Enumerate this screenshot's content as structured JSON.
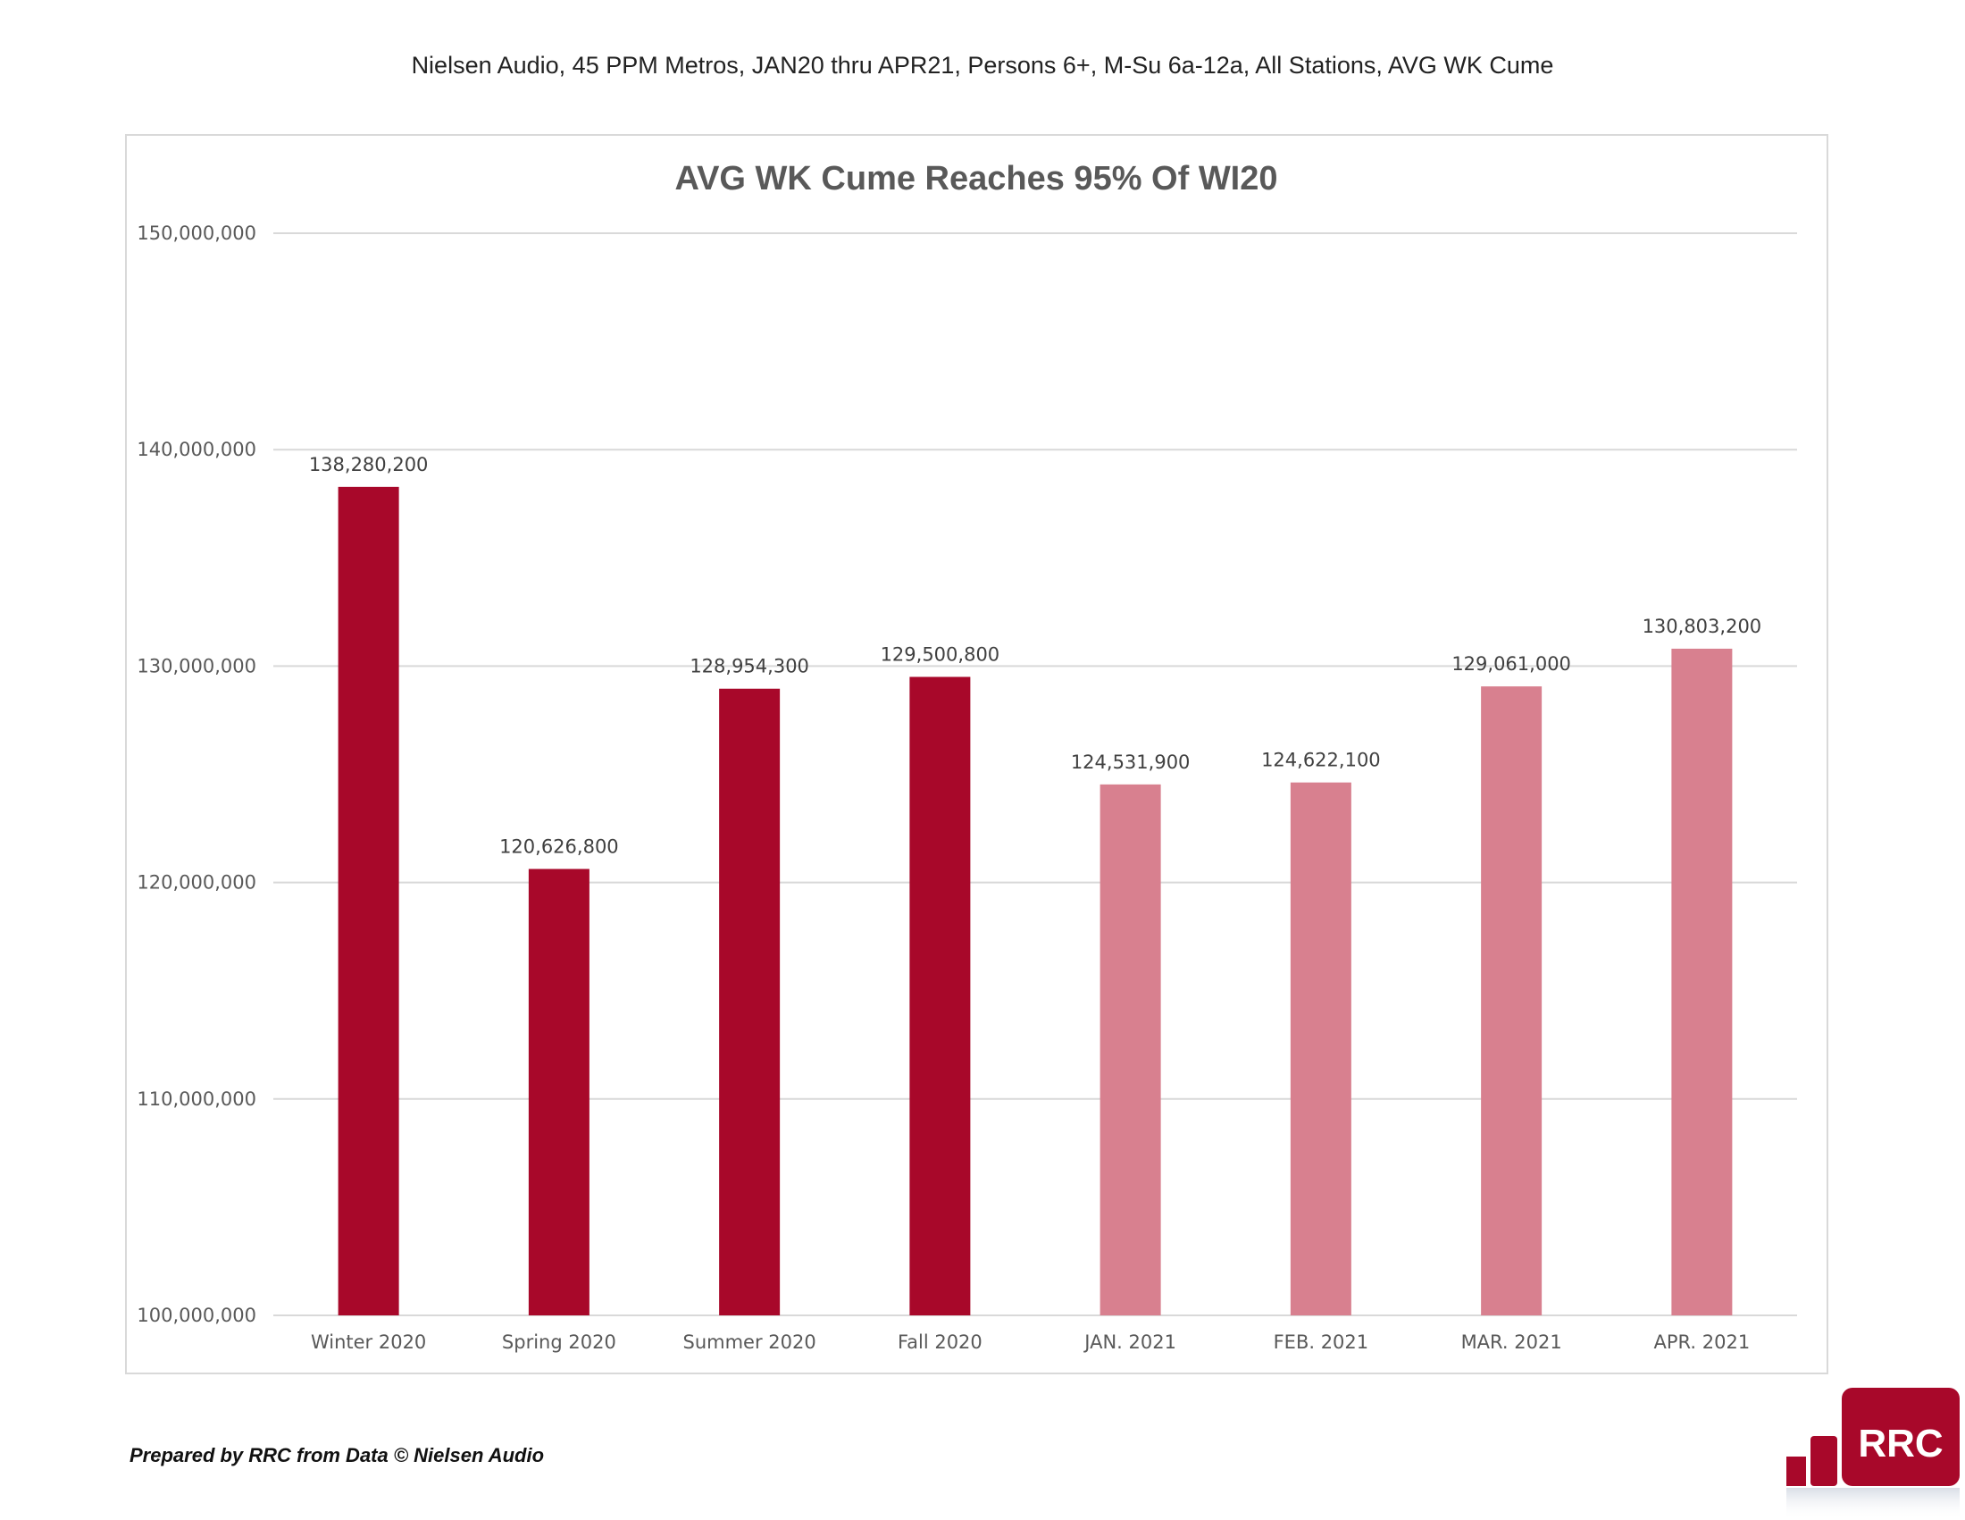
{
  "header": {
    "text": "Nielsen Audio, 45 PPM Metros, JAN20 thru APR21, Persons 6+, M-Su 6a-12a, All Stations, AVG WK Cume"
  },
  "footer": {
    "text": "Prepared by RRC from Data © Nielsen Audio"
  },
  "logo": {
    "text": "RRC",
    "color": "#A8082A"
  },
  "chart_data": {
    "type": "bar",
    "title": "AVG WK Cume Reaches 95% Of WI20",
    "xlabel": "",
    "ylabel": "",
    "ylim": [
      100000000,
      150000000
    ],
    "yticks": [
      100000000,
      110000000,
      120000000,
      130000000,
      140000000,
      150000000
    ],
    "ytick_labels": [
      "100,000,000",
      "110,000,000",
      "120,000,000",
      "130,000,000",
      "140,000,000",
      "150,000,000"
    ],
    "grid": true,
    "categories": [
      "Winter 2020",
      "Spring 2020",
      "Summer 2020",
      "Fall 2020",
      "JAN. 2021",
      "FEB. 2021",
      "MAR. 2021",
      "APR. 2021"
    ],
    "values": [
      138280200,
      120626800,
      128954300,
      129500800,
      124531900,
      124622100,
      129061000,
      130803200
    ],
    "value_labels": [
      "138,280,200",
      "120,626,800",
      "128,954,300",
      "129,500,800",
      "124,531,900",
      "124,622,100",
      "129,061,000",
      "130,803,200"
    ],
    "bar_colors": [
      "#A8082A",
      "#A8082A",
      "#A8082A",
      "#A8082A",
      "#D8808F",
      "#D8808F",
      "#D8808F",
      "#D8808F"
    ]
  }
}
